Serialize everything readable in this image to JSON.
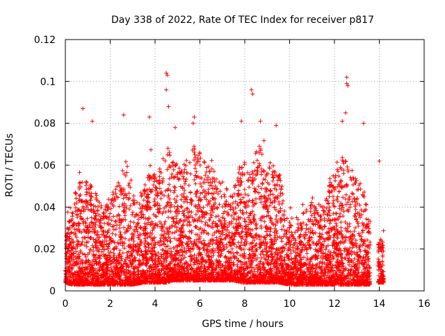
{
  "chart_data": {
    "type": "scatter",
    "title": "Day 338 of 2022, Rate Of TEC Index for receiver p817",
    "xlabel": "GPS time / hours",
    "ylabel": "ROTI / TECUs",
    "xlim": [
      0,
      16
    ],
    "ylim": [
      0,
      0.12
    ],
    "x_ticks": [
      0,
      2,
      4,
      6,
      8,
      10,
      12,
      14,
      16
    ],
    "x_tick_labels": [
      "0",
      "2",
      "4",
      "6",
      "8",
      "10",
      "12",
      "14",
      "16"
    ],
    "y_ticks": [
      0,
      0.02,
      0.04,
      0.06,
      0.08,
      0.1,
      0.12
    ],
    "y_tick_labels": [
      "0",
      "0.02",
      "0.04",
      "0.06",
      "0.08",
      "0.1",
      "0.12"
    ],
    "grid": true,
    "marker": "+",
    "series_color": "#ff0000",
    "data_range_hours": [
      0,
      14.2
    ],
    "highlight_points": [
      {
        "x": 0.78,
        "y": 0.087
      },
      {
        "x": 1.2,
        "y": 0.081
      },
      {
        "x": 2.6,
        "y": 0.084
      },
      {
        "x": 3.75,
        "y": 0.083
      },
      {
        "x": 4.5,
        "y": 0.104
      },
      {
        "x": 4.55,
        "y": 0.103
      },
      {
        "x": 4.5,
        "y": 0.096
      },
      {
        "x": 4.6,
        "y": 0.088
      },
      {
        "x": 4.9,
        "y": 0.078
      },
      {
        "x": 5.7,
        "y": 0.08
      },
      {
        "x": 5.75,
        "y": 0.083
      },
      {
        "x": 7.85,
        "y": 0.081
      },
      {
        "x": 8.3,
        "y": 0.096
      },
      {
        "x": 8.35,
        "y": 0.094
      },
      {
        "x": 8.7,
        "y": 0.081
      },
      {
        "x": 9.4,
        "y": 0.079
      },
      {
        "x": 12.35,
        "y": 0.081
      },
      {
        "x": 12.5,
        "y": 0.085
      },
      {
        "x": 12.55,
        "y": 0.102
      },
      {
        "x": 12.55,
        "y": 0.099
      },
      {
        "x": 12.6,
        "y": 0.098
      },
      {
        "x": 13.3,
        "y": 0.08
      },
      {
        "x": 14.0,
        "y": 0.062
      }
    ],
    "series": [
      {
        "name": "ROTI",
        "envelope": {
          "x": [
            0,
            0.3,
            0.5,
            0.8,
            1.2,
            1.7,
            2.0,
            2.5,
            2.7,
            3.0,
            3.5,
            3.8,
            4.0,
            4.3,
            4.5,
            4.8,
            5.2,
            5.5,
            5.8,
            6.2,
            6.5,
            7.0,
            7.5,
            7.9,
            8.2,
            8.6,
            8.9,
            9.2,
            9.5,
            10.0,
            10.5,
            11.0,
            11.5,
            12.0,
            12.4,
            12.6,
            13.0,
            13.3,
            13.5,
            14.0,
            14.2
          ],
          "typical_max": [
            0.025,
            0.045,
            0.05,
            0.055,
            0.05,
            0.04,
            0.045,
            0.055,
            0.065,
            0.045,
            0.05,
            0.065,
            0.055,
            0.06,
            0.075,
            0.065,
            0.06,
            0.065,
            0.07,
            0.062,
            0.06,
            0.05,
            0.048,
            0.065,
            0.055,
            0.07,
            0.065,
            0.06,
            0.06,
            0.035,
            0.035,
            0.045,
            0.04,
            0.06,
            0.065,
            0.06,
            0.055,
            0.05,
            0.04,
            0.025,
            0.025
          ],
          "min": [
            0.004,
            0.003,
            0.003,
            0.003,
            0.003,
            0.003,
            0.003,
            0.003,
            0.003,
            0.003,
            0.004,
            0.004,
            0.004,
            0.004,
            0.004,
            0.005,
            0.005,
            0.005,
            0.005,
            0.005,
            0.005,
            0.005,
            0.005,
            0.004,
            0.004,
            0.004,
            0.004,
            0.004,
            0.004,
            0.003,
            0.003,
            0.003,
            0.003,
            0.003,
            0.003,
            0.003,
            0.003,
            0.003,
            0.003,
            0.004,
            0.004
          ]
        },
        "num_points": 6500
      }
    ]
  }
}
